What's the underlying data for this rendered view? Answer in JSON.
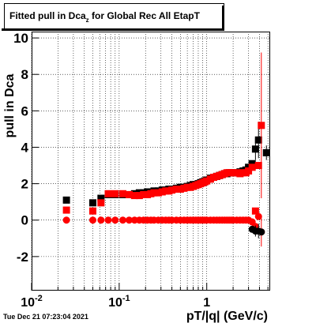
{
  "chart_data": {
    "type": "scatter",
    "title": [
      "Fitted pull in Dca",
      "z",
      " for Global Rec All EtapT"
    ],
    "y_label": "pull in Dca",
    "x_label": "pT/|q| (GeV/c)",
    "timestamp": "Tue Dec 21 07:23:04 2021",
    "log_x": true,
    "grid": true,
    "xlim": [
      0.01,
      5.3
    ],
    "ylim": [
      -3.87,
      10.35
    ],
    "xticks": [
      {
        "value": 0.01,
        "label": "10",
        "sup": "-2"
      },
      {
        "value": 0.1,
        "label": "10",
        "sup": "-1"
      },
      {
        "value": 1,
        "label": "1"
      }
    ],
    "xminor": [
      0.02,
      0.03,
      0.04,
      0.05,
      0.06,
      0.07,
      0.08,
      0.09,
      0.2,
      0.3,
      0.4,
      0.5,
      0.6,
      0.7,
      0.8,
      0.9,
      2,
      3,
      4,
      5
    ],
    "yticks": [
      -2,
      0,
      2,
      4,
      6,
      8,
      10
    ],
    "x": [
      0.025,
      0.05,
      0.062,
      0.075,
      0.09,
      0.11,
      0.13,
      0.15,
      0.17,
      0.19,
      0.21,
      0.23,
      0.25,
      0.28,
      0.31,
      0.34,
      0.37,
      0.4,
      0.45,
      0.5,
      0.55,
      0.6,
      0.65,
      0.7,
      0.75,
      0.8,
      0.85,
      0.9,
      0.95,
      1.0,
      1.1,
      1.2,
      1.3,
      1.4,
      1.5,
      1.6,
      1.7,
      1.8,
      1.9,
      2.0,
      2.2,
      2.4,
      2.6,
      2.8,
      3.0,
      3.3,
      3.6,
      3.9,
      4.2,
      4.8
    ],
    "series": [
      {
        "marker": "square",
        "color": "#000000",
        "values": [
          1.1,
          0.95,
          1.2,
          1.4,
          1.4,
          1.4,
          1.4,
          1.45,
          1.5,
          1.5,
          1.55,
          1.55,
          1.6,
          1.6,
          1.65,
          1.65,
          1.7,
          1.7,
          1.75,
          1.8,
          1.8,
          1.85,
          1.9,
          1.95,
          1.95,
          2.0,
          2.05,
          2.1,
          2.15,
          2.2,
          2.3,
          2.35,
          2.4,
          2.45,
          2.5,
          2.55,
          2.55,
          2.6,
          2.6,
          2.6,
          2.6,
          2.65,
          2.7,
          2.75,
          2.9,
          3.1,
          3.9,
          4.4,
          null,
          3.7
        ],
        "errors": [
          null,
          null,
          null,
          null,
          null,
          null,
          null,
          null,
          null,
          null,
          null,
          null,
          null,
          null,
          null,
          null,
          null,
          null,
          null,
          null,
          null,
          null,
          null,
          null,
          null,
          null,
          null,
          null,
          null,
          null,
          null,
          null,
          null,
          null,
          null,
          null,
          null,
          null,
          null,
          null,
          null,
          null,
          null,
          null,
          null,
          null,
          0.6,
          1.0,
          null,
          0.4
        ]
      },
      {
        "marker": "square",
        "color": "#ff0000",
        "values": [
          0.55,
          0.5,
          0.95,
          1.45,
          1.45,
          1.45,
          1.4,
          1.35,
          1.35,
          1.4,
          1.4,
          1.45,
          1.5,
          1.5,
          1.55,
          1.6,
          1.6,
          1.65,
          1.7,
          1.7,
          1.75,
          1.8,
          1.8,
          1.85,
          1.9,
          1.95,
          2.0,
          2.05,
          2.1,
          2.15,
          2.25,
          2.35,
          2.4,
          2.45,
          2.5,
          2.55,
          2.6,
          2.6,
          2.6,
          2.6,
          2.6,
          2.55,
          2.6,
          2.6,
          2.7,
          2.9,
          0.5,
          3.0,
          5.2,
          null
        ],
        "errors": [
          null,
          null,
          null,
          null,
          null,
          null,
          null,
          null,
          null,
          null,
          null,
          null,
          null,
          null,
          null,
          null,
          null,
          null,
          null,
          null,
          null,
          null,
          null,
          null,
          null,
          null,
          null,
          null,
          null,
          null,
          null,
          null,
          null,
          null,
          null,
          null,
          null,
          null,
          null,
          null,
          null,
          null,
          null,
          null,
          null,
          null,
          null,
          null,
          4.0,
          null
        ]
      },
      {
        "marker": "circle",
        "color": "#ff0000",
        "values": [
          0,
          0,
          0,
          0,
          0,
          0,
          0,
          0,
          0,
          0,
          0,
          0,
          0,
          0,
          0,
          0,
          0,
          0,
          0,
          0,
          0,
          0,
          0,
          0,
          0,
          0,
          0,
          0,
          0,
          0,
          0,
          0,
          0,
          0,
          0,
          0,
          0,
          0,
          0,
          0,
          0,
          0,
          0,
          0,
          0,
          -0.1,
          -0.35,
          0.2,
          -0.65,
          null
        ],
        "errors": [
          null,
          null,
          null,
          null,
          null,
          null,
          null,
          null,
          null,
          null,
          null,
          null,
          null,
          null,
          null,
          null,
          null,
          null,
          null,
          null,
          null,
          null,
          null,
          null,
          null,
          null,
          null,
          null,
          null,
          null,
          null,
          null,
          null,
          null,
          null,
          null,
          null,
          null,
          null,
          null,
          null,
          null,
          null,
          null,
          null,
          null,
          null,
          null,
          0.8,
          null
        ]
      },
      {
        "marker": "circle",
        "color": "#000000",
        "values": [
          null,
          null,
          null,
          null,
          null,
          null,
          null,
          null,
          null,
          null,
          null,
          null,
          null,
          null,
          null,
          null,
          null,
          null,
          null,
          null,
          null,
          null,
          null,
          null,
          null,
          null,
          null,
          null,
          null,
          null,
          null,
          null,
          null,
          null,
          null,
          null,
          null,
          null,
          null,
          null,
          null,
          null,
          null,
          null,
          null,
          -0.5,
          -0.6,
          -0.6,
          -0.65,
          null
        ],
        "errors": [
          null,
          null,
          null,
          null,
          null,
          null,
          null,
          null,
          null,
          null,
          null,
          null,
          null,
          null,
          null,
          null,
          null,
          null,
          null,
          null,
          null,
          null,
          null,
          null,
          null,
          null,
          null,
          null,
          null,
          null,
          null,
          null,
          null,
          null,
          null,
          null,
          null,
          null,
          null,
          null,
          null,
          null,
          null,
          null,
          null,
          null,
          0.3,
          0.4,
          null,
          null
        ]
      }
    ]
  }
}
